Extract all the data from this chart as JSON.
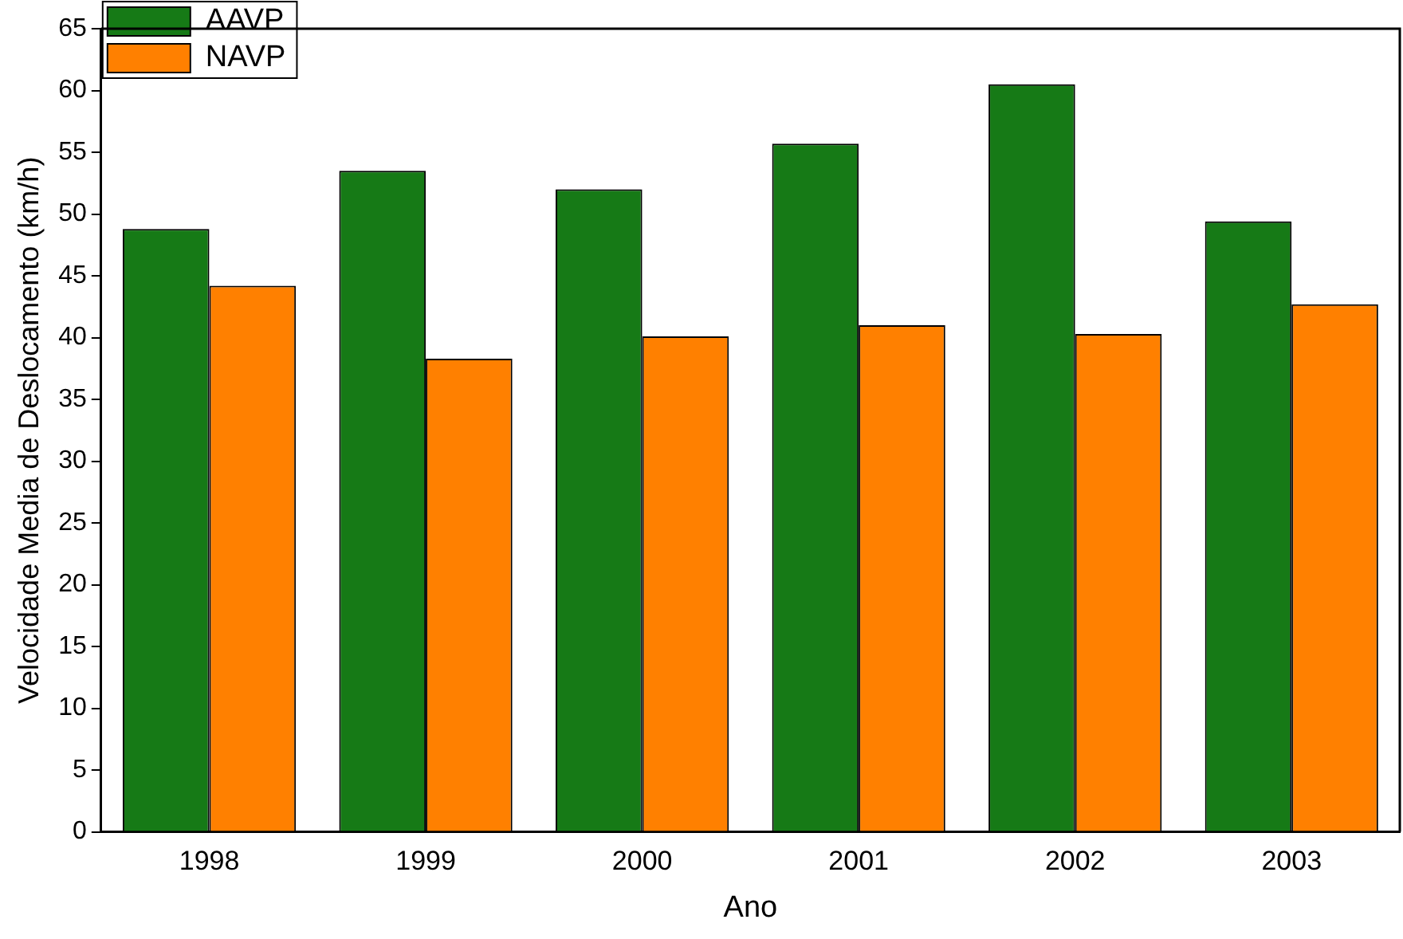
{
  "chart_data": {
    "type": "bar",
    "xlabel": "Ano",
    "ylabel": "Velocidade Media de Deslocamento (km/h)",
    "categories": [
      "1998",
      "1999",
      "2000",
      "2001",
      "2002",
      "2003"
    ],
    "series": [
      {
        "name": "AAVP",
        "color": "#167a16",
        "values": [
          48.8,
          53.5,
          52.0,
          55.7,
          60.5,
          49.4
        ]
      },
      {
        "name": "NAVP",
        "color": "#ff8000",
        "values": [
          44.2,
          38.3,
          40.1,
          41.0,
          40.3,
          42.7
        ]
      }
    ],
    "ylim": [
      0,
      65
    ],
    "yticks": [
      0,
      5,
      10,
      15,
      20,
      25,
      30,
      35,
      40,
      45,
      50,
      55,
      60,
      65
    ],
    "grid": false,
    "legend": "top left"
  }
}
